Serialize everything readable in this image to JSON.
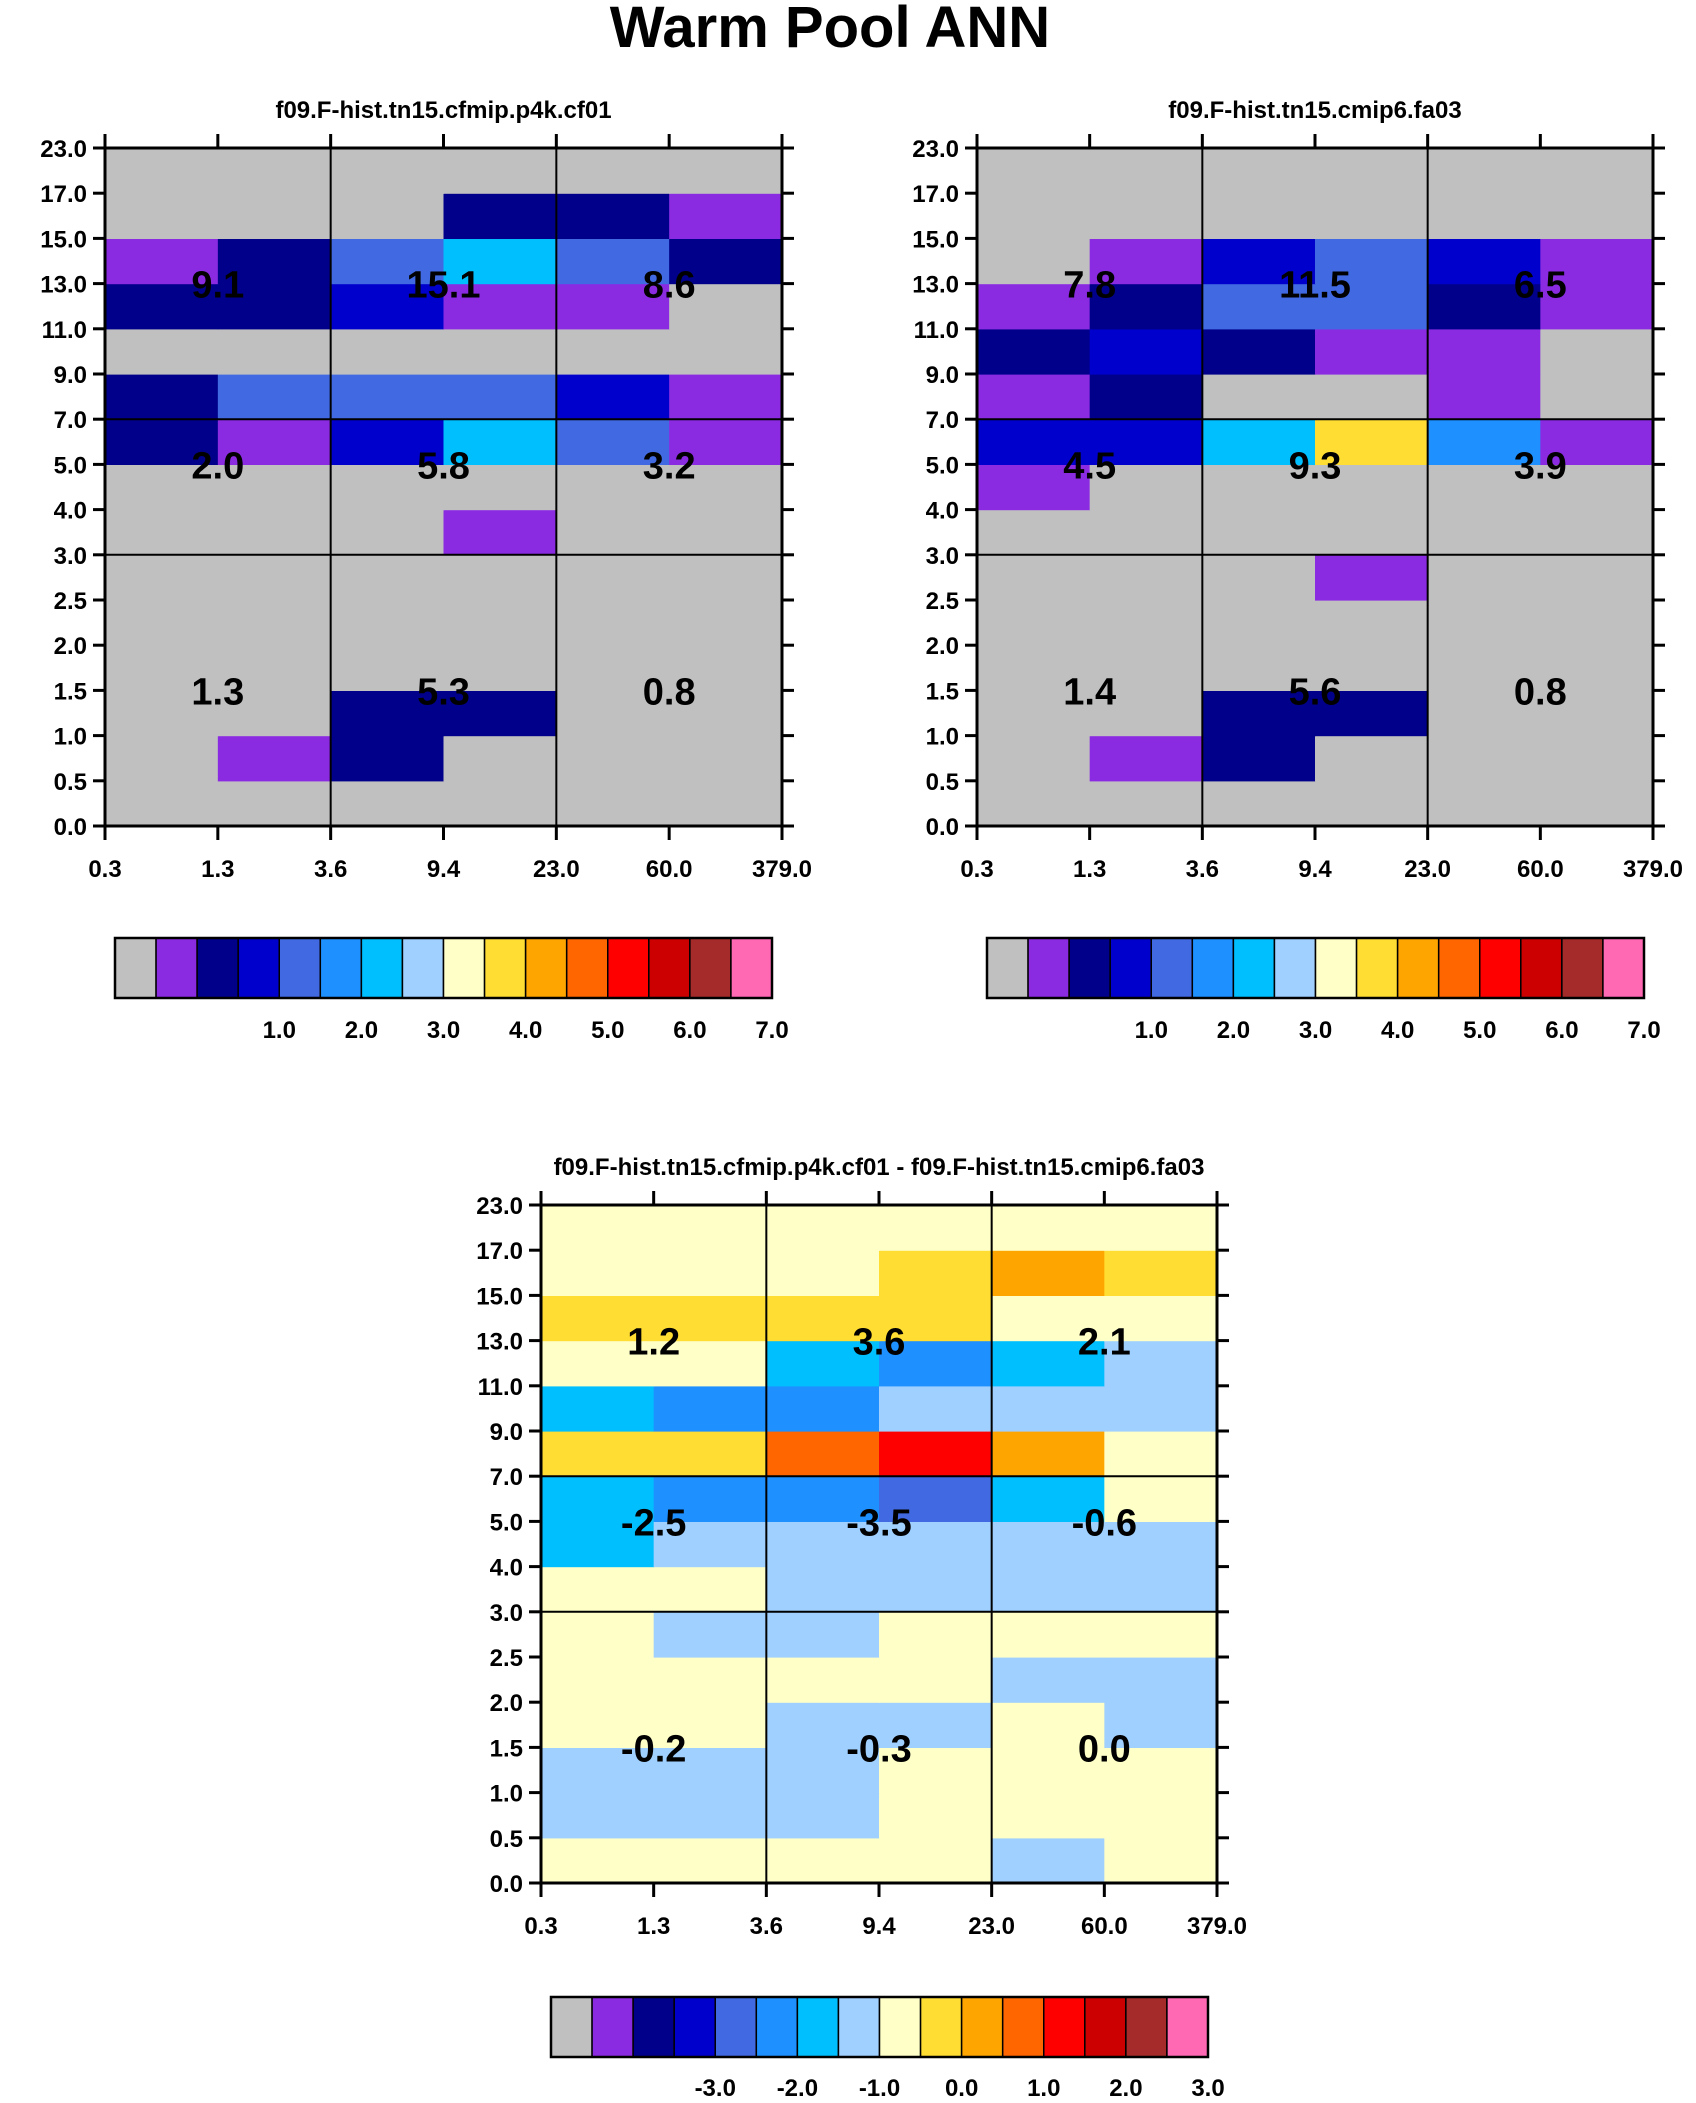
{
  "suptitle": "Warm Pool ANN",
  "colors": {
    "main": [
      "#c0c0c0",
      "#8a2be2",
      "#00008b",
      "#0000cd",
      "#4169e1",
      "#1e90ff",
      "#00bfff",
      "#a0d0ff",
      "#ffffc8",
      "#ffdd33",
      "#ffa500",
      "#ff6600",
      "#ff0000",
      "#cc0000",
      "#a52a2a",
      "#ff69b4"
    ],
    "grid": "#000000"
  },
  "chart_data": [
    {
      "type": "heatmap",
      "title": "f09.F-hist.tn15.cfmip.p4k.cf01",
      "x_tick_labels": [
        "0.3",
        "1.3",
        "3.6",
        "9.4",
        "23.0",
        "60.0",
        "379.0"
      ],
      "y_tick_labels": [
        "0.0",
        "0.5",
        "1.0",
        "1.5",
        "2.0",
        "2.5",
        "3.0",
        "4.0",
        "5.0",
        "7.0",
        "9.0",
        "11.0",
        "13.0",
        "15.0",
        "17.0",
        "23.0"
      ],
      "cell_color_index_rows_bottom_to_top": [
        [
          0,
          0,
          0,
          0,
          0,
          0
        ],
        [
          0,
          1,
          2,
          0,
          0,
          0
        ],
        [
          0,
          0,
          2,
          2,
          0,
          0
        ],
        [
          0,
          0,
          0,
          0,
          0,
          0
        ],
        [
          0,
          0,
          0,
          0,
          0,
          0
        ],
        [
          0,
          0,
          0,
          0,
          0,
          0
        ],
        [
          0,
          0,
          0,
          1,
          0,
          0
        ],
        [
          0,
          0,
          0,
          0,
          0,
          0
        ],
        [
          2,
          1,
          3,
          6,
          4,
          1
        ],
        [
          2,
          4,
          4,
          4,
          3,
          1
        ],
        [
          0,
          0,
          0,
          0,
          0,
          0
        ],
        [
          2,
          2,
          3,
          1,
          1,
          0
        ],
        [
          1,
          2,
          4,
          6,
          4,
          2
        ],
        [
          0,
          0,
          0,
          2,
          2,
          1
        ],
        [
          0,
          0,
          0,
          0,
          0,
          0
        ]
      ],
      "region_labels": [
        {
          "value": "9.1",
          "col": 0,
          "row": 0
        },
        {
          "value": "15.1",
          "col": 1,
          "row": 0
        },
        {
          "value": "8.6",
          "col": 2,
          "row": 0
        },
        {
          "value": "2.0",
          "col": 0,
          "row": 1
        },
        {
          "value": "5.8",
          "col": 1,
          "row": 1
        },
        {
          "value": "3.2",
          "col": 2,
          "row": 1
        },
        {
          "value": "1.3",
          "col": 0,
          "row": 2
        },
        {
          "value": "5.3",
          "col": 1,
          "row": 2
        },
        {
          "value": "0.8",
          "col": 2,
          "row": 2
        }
      ],
      "colorbar": {
        "palette": "main",
        "labels": [
          "1.0",
          "2.0",
          "3.0",
          "4.0",
          "5.0",
          "6.0",
          "7.0"
        ]
      }
    },
    {
      "type": "heatmap",
      "title": "f09.F-hist.tn15.cmip6.fa03",
      "x_tick_labels": [
        "0.3",
        "1.3",
        "3.6",
        "9.4",
        "23.0",
        "60.0",
        "379.0"
      ],
      "y_tick_labels": [
        "0.0",
        "0.5",
        "1.0",
        "1.5",
        "2.0",
        "2.5",
        "3.0",
        "4.0",
        "5.0",
        "7.0",
        "9.0",
        "11.0",
        "13.0",
        "15.0",
        "17.0",
        "23.0"
      ],
      "cell_color_index_rows_bottom_to_top": [
        [
          0,
          0,
          0,
          0,
          0,
          0
        ],
        [
          0,
          1,
          2,
          0,
          0,
          0
        ],
        [
          0,
          0,
          2,
          2,
          0,
          0
        ],
        [
          0,
          0,
          0,
          0,
          0,
          0
        ],
        [
          0,
          0,
          0,
          0,
          0,
          0
        ],
        [
          0,
          0,
          0,
          1,
          0,
          0
        ],
        [
          0,
          0,
          0,
          0,
          0,
          0
        ],
        [
          1,
          0,
          0,
          0,
          0,
          0
        ],
        [
          3,
          3,
          6,
          9,
          5,
          1
        ],
        [
          1,
          2,
          0,
          0,
          1,
          0
        ],
        [
          2,
          3,
          2,
          1,
          1,
          0
        ],
        [
          1,
          2,
          4,
          4,
          2,
          1
        ],
        [
          0,
          1,
          3,
          4,
          3,
          1
        ],
        [
          0,
          0,
          0,
          0,
          0,
          0
        ],
        [
          0,
          0,
          0,
          0,
          0,
          0
        ]
      ],
      "region_labels": [
        {
          "value": "7.8",
          "col": 0,
          "row": 0
        },
        {
          "value": "11.5",
          "col": 1,
          "row": 0
        },
        {
          "value": "6.5",
          "col": 2,
          "row": 0
        },
        {
          "value": "4.5",
          "col": 0,
          "row": 1
        },
        {
          "value": "9.3",
          "col": 1,
          "row": 1
        },
        {
          "value": "3.9",
          "col": 2,
          "row": 1
        },
        {
          "value": "1.4",
          "col": 0,
          "row": 2
        },
        {
          "value": "5.6",
          "col": 1,
          "row": 2
        },
        {
          "value": "0.8",
          "col": 2,
          "row": 2
        }
      ],
      "colorbar": {
        "palette": "main",
        "labels": [
          "1.0",
          "2.0",
          "3.0",
          "4.0",
          "5.0",
          "6.0",
          "7.0"
        ]
      }
    },
    {
      "type": "heatmap",
      "title": "f09.F-hist.tn15.cfmip.p4k.cf01 - f09.F-hist.tn15.cmip6.fa03",
      "x_tick_labels": [
        "0.3",
        "1.3",
        "3.6",
        "9.4",
        "23.0",
        "60.0",
        "379.0"
      ],
      "y_tick_labels": [
        "0.0",
        "0.5",
        "1.0",
        "1.5",
        "2.0",
        "2.5",
        "3.0",
        "4.0",
        "5.0",
        "7.0",
        "9.0",
        "11.0",
        "13.0",
        "15.0",
        "17.0",
        "23.0"
      ],
      "cell_color_index_rows_bottom_to_top": [
        [
          8,
          8,
          8,
          8,
          7,
          8
        ],
        [
          7,
          7,
          7,
          8,
          8,
          8
        ],
        [
          7,
          7,
          7,
          8,
          8,
          8
        ],
        [
          8,
          8,
          7,
          7,
          8,
          7
        ],
        [
          8,
          8,
          8,
          8,
          7,
          7
        ],
        [
          8,
          7,
          7,
          8,
          8,
          8
        ],
        [
          8,
          8,
          7,
          7,
          7,
          7
        ],
        [
          6,
          7,
          7,
          7,
          7,
          7
        ],
        [
          6,
          5,
          5,
          4,
          6,
          8
        ],
        [
          9,
          9,
          11,
          12,
          10,
          8
        ],
        [
          6,
          5,
          5,
          7,
          7,
          7
        ],
        [
          8,
          8,
          6,
          5,
          6,
          7
        ],
        [
          9,
          9,
          9,
          9,
          8,
          8
        ],
        [
          8,
          8,
          8,
          9,
          10,
          9
        ],
        [
          8,
          8,
          8,
          8,
          8,
          8
        ]
      ],
      "region_labels": [
        {
          "value": "1.2",
          "col": 0,
          "row": 0
        },
        {
          "value": "3.6",
          "col": 1,
          "row": 0
        },
        {
          "value": "2.1",
          "col": 2,
          "row": 0
        },
        {
          "value": "-2.5",
          "col": 0,
          "row": 1
        },
        {
          "value": "-3.5",
          "col": 1,
          "row": 1
        },
        {
          "value": "-0.6",
          "col": 2,
          "row": 1
        },
        {
          "value": "-0.2",
          "col": 0,
          "row": 2
        },
        {
          "value": "-0.3",
          "col": 1,
          "row": 2
        },
        {
          "value": "0.0",
          "col": 2,
          "row": 2
        }
      ],
      "colorbar": {
        "palette": "main",
        "labels": [
          "-3.0",
          "-2.0",
          "-1.0",
          "0.0",
          "1.0",
          "2.0",
          "3.0"
        ]
      }
    }
  ]
}
